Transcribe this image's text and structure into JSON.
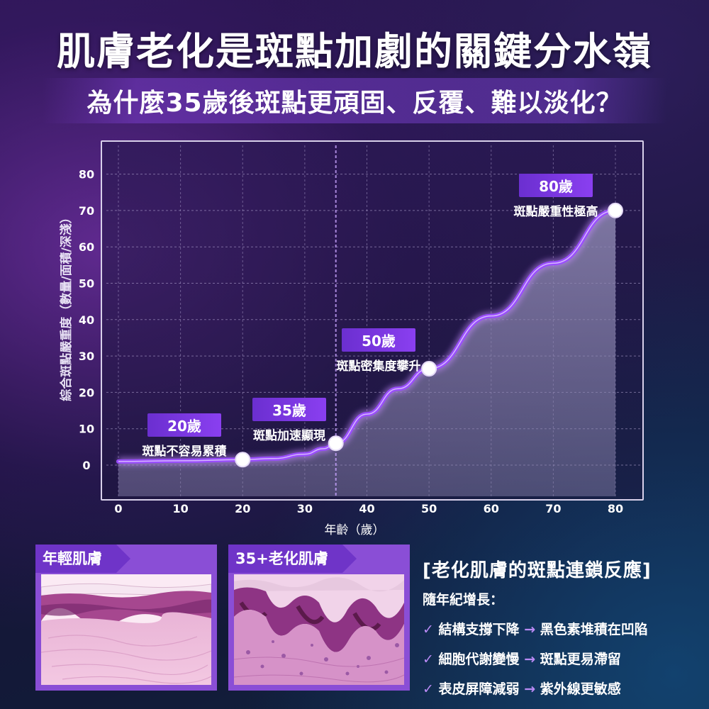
{
  "header": {
    "title": "肌膚老化是斑點加劇的關鍵分水嶺",
    "subtitle": "為什麼35歲後斑點更頑固、反覆、難以淡化？"
  },
  "colors": {
    "line": "#9a4dff",
    "line_glow": "#c58bff",
    "area": "#8c86b0",
    "accent": "#7b3fe4"
  },
  "chart_data": {
    "type": "line",
    "title": "",
    "xlabel": "年齡（歲）",
    "ylabel": "綜合斑點嚴重度（數量/面積/深淺）",
    "xlim": [
      0,
      80
    ],
    "ylim": [
      -8,
      81
    ],
    "x_ticks": [
      0,
      10,
      20,
      30,
      40,
      50,
      60,
      70,
      80
    ],
    "y_ticks": [
      0,
      10,
      20,
      30,
      40,
      50,
      60,
      70,
      80
    ],
    "x": [
      0,
      10,
      20,
      25,
      30,
      33,
      35,
      40,
      45,
      50,
      60,
      70,
      80
    ],
    "series": [
      {
        "values": [
          1,
          1.2,
          1.5,
          1.8,
          3,
          4.5,
          6,
          14,
          21,
          26.5,
          41,
          55.5,
          70
        ]
      }
    ],
    "marker_x": 35,
    "grid": true,
    "annotations": [
      {
        "x": 20,
        "y": 1.5,
        "age": "20歲",
        "text": "斑點不容易累積"
      },
      {
        "x": 35,
        "y": 6,
        "age": "35歲",
        "text": "斑點加速顯現"
      },
      {
        "x": 50,
        "y": 26.5,
        "age": "50歲",
        "text": "斑點密集度攀升"
      },
      {
        "x": 80,
        "y": 70,
        "age": "80歲",
        "text": "斑點嚴重性極高"
      }
    ]
  },
  "panels": {
    "young_label": "年輕肌膚",
    "aged_label": "35+老化肌膚"
  },
  "reaction": {
    "title": "[老化肌膚的斑點連鎖反應]",
    "intro": "隨年紀增長：",
    "items": [
      {
        "check": "✓",
        "cause": "結構支撐下降",
        "arrow": "→",
        "effect": "黑色素堆積在凹陷"
      },
      {
        "check": "✓",
        "cause": "細胞代謝變慢",
        "arrow": "→",
        "effect": "斑點更易滯留"
      },
      {
        "check": "✓",
        "cause": "表皮屏障減弱",
        "arrow": "→",
        "effect": "紫外線更敏感"
      }
    ]
  }
}
